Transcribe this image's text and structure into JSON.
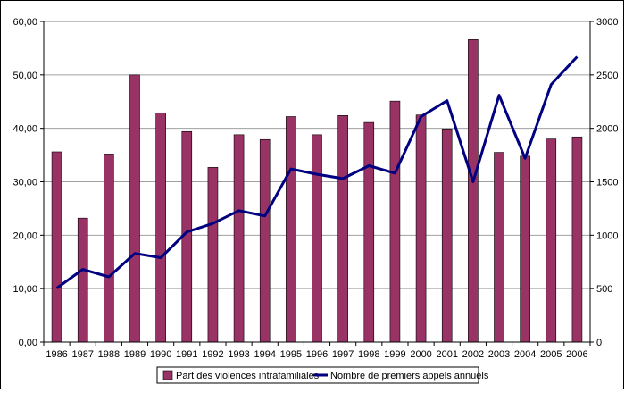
{
  "chart_data": {
    "type": "bar+line",
    "categories": [
      "1986",
      "1987",
      "1988",
      "1989",
      "1990",
      "1991",
      "1992",
      "1993",
      "1994",
      "1995",
      "1996",
      "1997",
      "1998",
      "1999",
      "2000",
      "2001",
      "2002",
      "2003",
      "2004",
      "2005",
      "2006"
    ],
    "series": [
      {
        "name": "Part des violences intrafamiliales",
        "type": "bar",
        "axis": "left",
        "color": "#993366",
        "values": [
          35.6,
          23.2,
          35.2,
          50.0,
          42.9,
          39.4,
          32.7,
          38.8,
          37.9,
          42.2,
          38.8,
          42.4,
          41.1,
          45.1,
          42.5,
          39.9,
          56.6,
          35.5,
          34.8,
          38.0,
          38.4
        ]
      },
      {
        "name": "Nombre de premiers appels annuels",
        "type": "line",
        "axis": "right",
        "color": "#000080",
        "values": [
          505,
          680,
          610,
          830,
          790,
          1030,
          1110,
          1230,
          1180,
          1620,
          1570,
          1530,
          1650,
          1580,
          2110,
          2260,
          1500,
          2310,
          1720,
          2410,
          2670
        ]
      }
    ],
    "y_left": {
      "min": 0,
      "max": 60,
      "ticks": [
        "0,00",
        "10,00",
        "20,00",
        "30,00",
        "40,00",
        "50,00",
        "60,00"
      ]
    },
    "y_right": {
      "min": 0,
      "max": 3000,
      "ticks": [
        "0",
        "500",
        "1000",
        "1500",
        "2000",
        "2500",
        "3000"
      ]
    },
    "grid": true,
    "legend_position": "bottom"
  }
}
